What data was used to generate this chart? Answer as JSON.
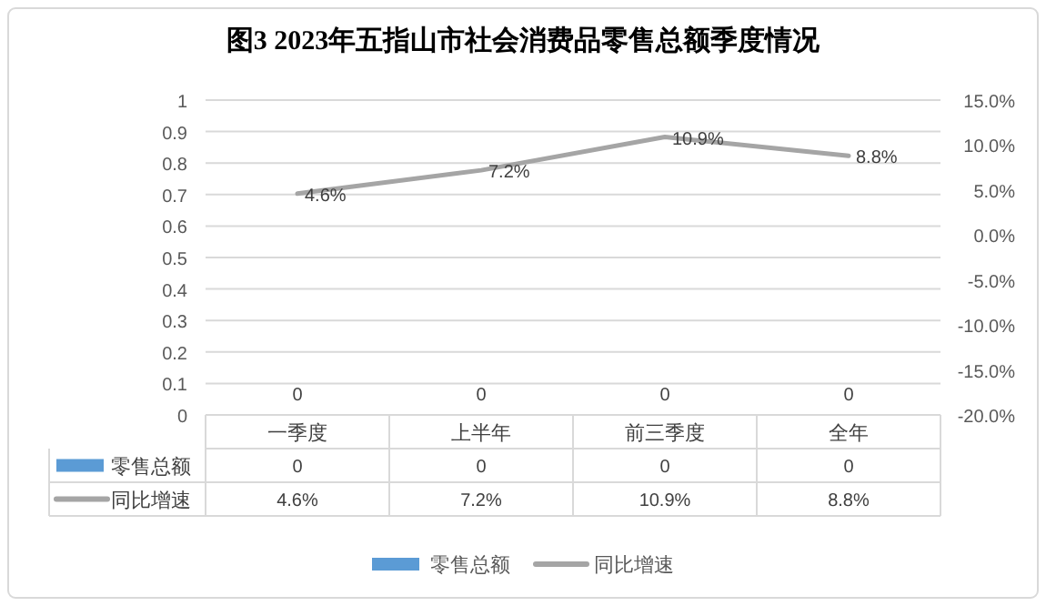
{
  "chart_data": {
    "type": "bar",
    "title": "图3 2023年五指山市社会消费品零售总额季度情况",
    "categories": [
      "一季度",
      "上半年",
      "前三季度",
      "全年"
    ],
    "series": [
      {
        "name": "零售总额",
        "color": "#5b9bd5",
        "values": [
          0,
          0,
          0,
          0
        ],
        "value_labels": [
          "0",
          "0",
          "0",
          "0"
        ]
      },
      {
        "name": "同比增速",
        "type": "line",
        "axis": "y2",
        "color": "#a5a5a5",
        "values": [
          4.6,
          7.2,
          10.9,
          8.8
        ],
        "value_labels": [
          "4.6%",
          "7.2%",
          "10.9%",
          "8.8%"
        ]
      }
    ],
    "ylim": [
      0,
      1
    ],
    "yticks": [
      0,
      0.1,
      0.2,
      0.3,
      0.4,
      0.5,
      0.6,
      0.7,
      0.8,
      0.9,
      1
    ],
    "y2lim": [
      -20,
      15
    ],
    "y2ticks": [
      {
        "value": -20,
        "label": "-20.0%"
      },
      {
        "value": -15,
        "label": "-15.0%"
      },
      {
        "value": -10,
        "label": "-10.0%"
      },
      {
        "value": -5,
        "label": "-5.0%"
      },
      {
        "value": 0,
        "label": "0.0%"
      },
      {
        "value": 5,
        "label": "5.0%"
      },
      {
        "value": 10,
        "label": "10.0%"
      },
      {
        "value": 15,
        "label": "15.0%"
      }
    ],
    "grid": "y",
    "legend": "bottom"
  }
}
